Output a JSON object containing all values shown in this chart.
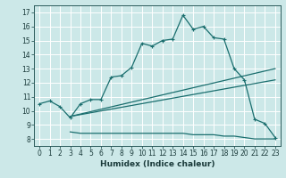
{
  "xlabel": "Humidex (Indice chaleur)",
  "bg_color": "#cce8e8",
  "grid_color": "#ffffff",
  "line_color": "#1a6e6e",
  "xlim": [
    -0.5,
    23.5
  ],
  "ylim": [
    7.5,
    17.5
  ],
  "xticks": [
    0,
    1,
    2,
    3,
    4,
    5,
    6,
    7,
    8,
    9,
    10,
    11,
    12,
    13,
    14,
    15,
    16,
    17,
    18,
    19,
    20,
    21,
    22,
    23
  ],
  "yticks": [
    8,
    9,
    10,
    11,
    12,
    13,
    14,
    15,
    16,
    17
  ],
  "line1_x": [
    0,
    1,
    2,
    3,
    4,
    5,
    6,
    7,
    8,
    9,
    10,
    11,
    12,
    13,
    14,
    15,
    16,
    17,
    18,
    19,
    20,
    21,
    22,
    23
  ],
  "line1_y": [
    10.5,
    10.7,
    10.3,
    9.5,
    10.5,
    10.8,
    10.8,
    12.4,
    12.5,
    13.1,
    14.8,
    14.6,
    15.0,
    15.1,
    16.8,
    15.8,
    16.0,
    15.2,
    15.1,
    13.0,
    12.2,
    9.4,
    9.1,
    8.1
  ],
  "line3_x": [
    3,
    4,
    5,
    6,
    7,
    8,
    9,
    10,
    11,
    12,
    13,
    14,
    15,
    16,
    17,
    18,
    19,
    20,
    21,
    22,
    23
  ],
  "line3_y": [
    8.5,
    8.4,
    8.4,
    8.4,
    8.4,
    8.4,
    8.4,
    8.4,
    8.4,
    8.4,
    8.4,
    8.4,
    8.3,
    8.3,
    8.3,
    8.2,
    8.2,
    8.1,
    8.0,
    8.0,
    8.0
  ],
  "line4_x": [
    3,
    23
  ],
  "line4_y": [
    9.6,
    13.0
  ],
  "line5_x": [
    3,
    23
  ],
  "line5_y": [
    9.6,
    12.2
  ],
  "xlabel_fontsize": 6.5,
  "tick_fontsize": 5.5
}
